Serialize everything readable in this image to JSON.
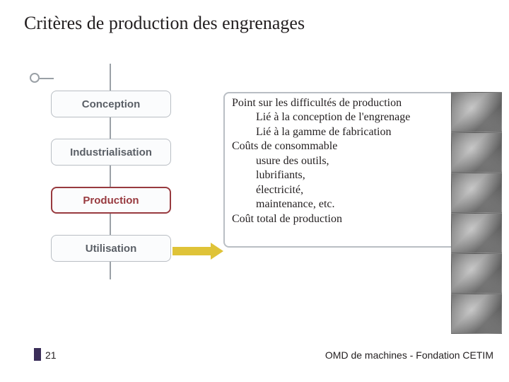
{
  "colors": {
    "title_bar_bg": "#3b2e59",
    "title_color": "#231f20",
    "line_color": "#9aa0a6",
    "stage_border": "#b9bec4",
    "stage_text": "#5a5f66",
    "stage_bg": "#fbfcfd",
    "selected_border": "#983a3f",
    "selected_text": "#983a3f",
    "arrow_fill": "#dfc338",
    "detail_border": "#b9bec4",
    "detail_text": "#231f20",
    "footer_accent": "#3b2e59",
    "footer_text": "#231f20",
    "img_bg": "#7a807f"
  },
  "title": "Critères de production des engrenages",
  "stages": [
    {
      "label": "Conception",
      "selected": false
    },
    {
      "label": "Industrialisation",
      "selected": false
    },
    {
      "label": "Production",
      "selected": true
    },
    {
      "label": "Utilisation",
      "selected": false
    }
  ],
  "detail": {
    "lines": [
      {
        "text": "Point sur les difficultés de production",
        "indent": 0
      },
      {
        "text": "Lié à la conception de l'engrenage",
        "indent": 1
      },
      {
        "text": "Lié à la gamme de fabrication",
        "indent": 1
      },
      {
        "text": "Coûts de consommable",
        "indent": 0
      },
      {
        "text": "usure des outils,",
        "indent": 1
      },
      {
        "text": "lubrifiants,",
        "indent": 1
      },
      {
        "text": "électricité,",
        "indent": 1
      },
      {
        "text": "maintenance, etc.",
        "indent": 1
      },
      {
        "text": "Coût total de production",
        "indent": 0
      }
    ]
  },
  "image_strip_count": 6,
  "footer": {
    "page": "21",
    "text": "OMD de machines - Fondation CETIM"
  }
}
